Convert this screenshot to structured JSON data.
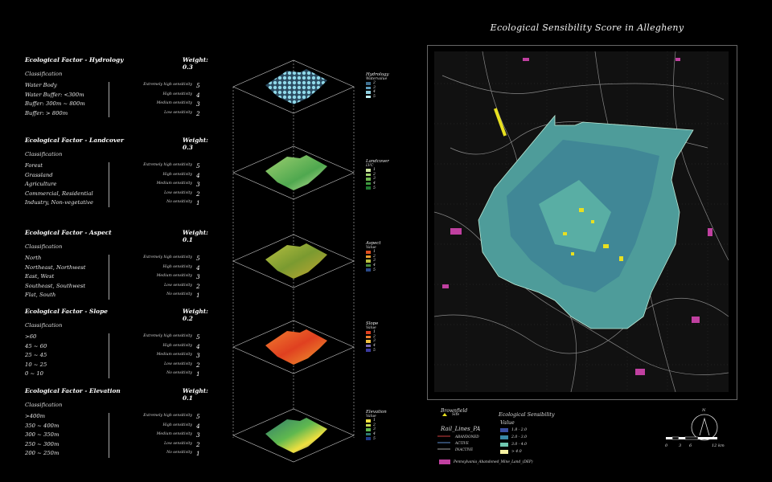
{
  "title": "Ecological  Sensibility  Score  in  Allegheny",
  "factors": [
    {
      "name": "Ecological Factor - Hydrology",
      "weight": "Weight: 0.3",
      "sub": "Classification",
      "rows": [
        [
          "Water Body",
          "Extremely high sensitivity",
          "5"
        ],
        [
          "Water Buffer: <300m",
          "High sensitivity",
          "4"
        ],
        [
          "Buffer: 300m ~ 800m",
          "Medium sensitivity",
          "3"
        ],
        [
          "Buffer: > 800m",
          "Low sensitivity",
          "2"
        ]
      ]
    },
    {
      "name": "Ecological Factor - Landcover",
      "weight": "Weight: 0.3",
      "sub": "Classification",
      "rows": [
        [
          "Forest",
          "Extremely high sensitivity",
          "5"
        ],
        [
          "Grassland",
          "High sensitivity",
          "4"
        ],
        [
          "Agriculture",
          "Medium sensitivity",
          "3"
        ],
        [
          "Commercial, Residential",
          "Low sensitivity",
          "2"
        ],
        [
          "Industry, Non-vegetative",
          "No sensitivity",
          "1"
        ]
      ]
    },
    {
      "name": "Ecological Factor - Aspect",
      "weight": "Weight: 0.1",
      "sub": "Classification",
      "rows": [
        [
          "North",
          "Extremely high sensitivity",
          "5"
        ],
        [
          "Northeast, Northwest",
          "High sensitivity",
          "4"
        ],
        [
          "East, West",
          "Medium sensitivity",
          "3"
        ],
        [
          "Southeast, Southwest",
          "Low sensitivity",
          "2"
        ],
        [
          "Flat, South",
          "No sensitivity",
          "1"
        ]
      ]
    },
    {
      "name": "Ecological Factor - Slope",
      "weight": "Weight: 0.2",
      "sub": "Classification",
      "rows": [
        [
          ">60",
          "Extremely high sensitivity",
          "5"
        ],
        [
          "45 ~ 60",
          "High sensitivity",
          "4"
        ],
        [
          "25 ~ 45",
          "Medium sensitivity",
          "3"
        ],
        [
          "10 ~ 25",
          "Low sensitivity",
          "2"
        ],
        [
          "0 ~ 10",
          "No sensitivity",
          "1"
        ]
      ]
    },
    {
      "name": "Ecological Factor - Elevation",
      "weight": "Weight: 0.1",
      "sub": "Classification",
      "rows": [
        [
          ">400m",
          "Extremely high sensitivity",
          "5"
        ],
        [
          "350 ~ 400m",
          "High sensitivity",
          "4"
        ],
        [
          "300 ~ 350m",
          "Medium sensitivity",
          "3"
        ],
        [
          "250 ~ 300m",
          "Low sensitivity",
          "2"
        ],
        [
          "200 ~ 250m",
          "No sensitivity",
          "1"
        ]
      ]
    }
  ],
  "layer_legends": [
    {
      "title": "Hydrology",
      "sub": "Watervalue",
      "items": [
        "2",
        "3",
        "4",
        "5"
      ],
      "colors": [
        "#3f6f8f",
        "#5f9fbf",
        "#8fcfe0",
        "#bfeff5"
      ]
    },
    {
      "title": "Landcover",
      "sub": "LVC",
      "items": [
        "1",
        "2",
        "3",
        "4",
        "5"
      ],
      "colors": [
        "#cfe8a0",
        "#9fd070",
        "#6fb84f",
        "#3f9a3f",
        "#207a30"
      ]
    },
    {
      "title": "Aspect",
      "sub": "Value",
      "items": [
        "1",
        "2",
        "3",
        "4",
        "5"
      ],
      "colors": [
        "#e05020",
        "#e8a030",
        "#b8c040",
        "#4a8a3a",
        "#2a4a8a"
      ]
    },
    {
      "title": "Slope",
      "sub": "Value",
      "items": [
        "1",
        "2",
        "3",
        "4",
        "5"
      ],
      "colors": [
        "#e04020",
        "#f08030",
        "#f0c040",
        "#7a6ab0",
        "#3a3aa0"
      ]
    },
    {
      "title": "Elevation",
      "sub": "Value",
      "items": [
        "1",
        "2",
        "3",
        "4",
        "5"
      ],
      "colors": [
        "#f0e040",
        "#c8d850",
        "#5fb84f",
        "#2f7a6f",
        "#203a8a"
      ]
    }
  ],
  "bottom_legend": {
    "brownfield_title": "Brownfield",
    "brownfield_item": "Site",
    "rail_title": "Rail_Lines_PA",
    "rail_items": [
      "ABANDONED",
      "ACTIVE",
      "INACTIVE"
    ],
    "eco_title": "Ecological Sensibility",
    "eco_sub": "Value",
    "eco_items": [
      "1.8 - 2.0",
      "2.0 - 3.0",
      "3.0 - 4.0",
      "> 4.0"
    ],
    "eco_colors": [
      "#3a4fa0",
      "#3a8aa8",
      "#6fc8b0",
      "#f4f0a0"
    ],
    "mine_label": "Pennsylvania_Abandoned_Mine_Land_(DEP)"
  },
  "scale_bar": {
    "labels": [
      "0",
      "3",
      "6",
      "12 km"
    ]
  },
  "north": "N",
  "colors": {
    "mine": "#c040a0",
    "brownfield": "#e8e020",
    "rail_abandoned": "#d04040",
    "rail_active": "#6090d0",
    "rail_inactive": "#a0a0a0"
  }
}
